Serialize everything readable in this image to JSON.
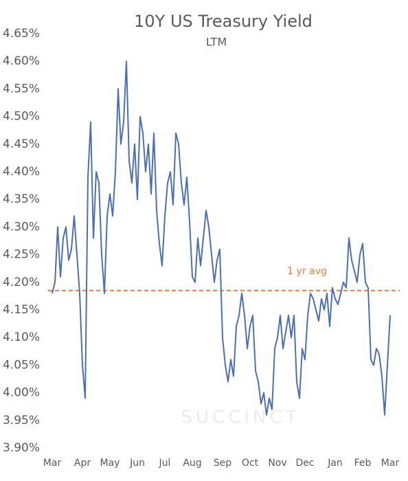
{
  "chart_data": {
    "type": "line",
    "title": "10Y US Treasury Yield",
    "subtitle": "LTM",
    "categories": [
      "Mar",
      null,
      null,
      null,
      null,
      null,
      null,
      null,
      null,
      null,
      null,
      "Apr",
      null,
      null,
      null,
      null,
      null,
      null,
      null,
      null,
      null,
      "May",
      null,
      null,
      null,
      null,
      null,
      null,
      null,
      null,
      null,
      "Jun",
      null,
      null,
      null,
      null,
      null,
      null,
      null,
      null,
      null,
      "Jul",
      null,
      null,
      null,
      null,
      null,
      null,
      null,
      null,
      null,
      "Aug",
      null,
      null,
      null,
      null,
      null,
      null,
      null,
      null,
      null,
      null,
      "Sep",
      null,
      null,
      null,
      null,
      null,
      null,
      null,
      null,
      null,
      "Oct",
      null,
      null,
      null,
      null,
      null,
      null,
      null,
      null,
      null,
      "Nov",
      null,
      null,
      null,
      null,
      null,
      null,
      null,
      null,
      null,
      "Dec",
      null,
      null,
      null,
      null,
      null,
      null,
      null,
      null,
      null,
      null,
      "Jan",
      null,
      null,
      null,
      null,
      null,
      null,
      null,
      null,
      null,
      "Feb",
      null,
      null,
      null,
      null,
      null,
      null,
      null,
      null,
      null,
      "Mar"
    ],
    "series": [
      {
        "name": "10Y US Treasury Yield",
        "color": "#4a6fb5",
        "values": [
          4.18,
          4.2,
          4.3,
          4.21,
          4.28,
          4.3,
          4.24,
          4.26,
          4.32,
          4.25,
          4.18,
          4.05,
          3.99,
          4.39,
          4.49,
          4.28,
          4.4,
          4.38,
          4.25,
          4.18,
          4.32,
          4.36,
          4.32,
          4.4,
          4.55,
          4.45,
          4.49,
          4.6,
          4.42,
          4.38,
          4.45,
          4.35,
          4.5,
          4.47,
          4.4,
          4.45,
          4.36,
          4.47,
          4.33,
          4.27,
          4.23,
          4.32,
          4.38,
          4.4,
          4.34,
          4.47,
          4.45,
          4.38,
          4.34,
          4.39,
          4.31,
          4.21,
          4.2,
          4.28,
          4.23,
          4.28,
          4.33,
          4.3,
          4.25,
          4.2,
          4.24,
          4.26,
          4.1,
          4.05,
          4.02,
          4.06,
          4.03,
          4.12,
          4.14,
          4.18,
          4.14,
          4.08,
          4.12,
          4.14,
          4.04,
          4.02,
          3.98,
          4.0,
          3.96,
          3.99,
          3.97,
          4.08,
          4.1,
          4.14,
          4.08,
          4.11,
          4.14,
          4.1,
          4.14,
          4.02,
          3.99,
          4.08,
          4.06,
          4.14,
          4.18,
          4.17,
          4.15,
          4.13,
          4.17,
          4.15,
          4.18,
          4.12,
          4.19,
          4.17,
          4.16,
          4.18,
          4.2,
          4.19,
          4.28,
          4.24,
          4.22,
          4.2,
          4.25,
          4.27,
          4.2,
          4.19,
          4.06,
          4.05,
          4.08,
          4.07,
          4.03,
          3.96,
          4.05,
          4.14
        ]
      }
    ],
    "ylim": [
      3.9,
      4.65
    ],
    "yticks": [
      {
        "value": 3.9,
        "label": "3.90%"
      },
      {
        "value": 3.95,
        "label": "3.95%"
      },
      {
        "value": 4.0,
        "label": "4.00%"
      },
      {
        "value": 4.05,
        "label": "4.05%"
      },
      {
        "value": 4.1,
        "label": "4.10%"
      },
      {
        "value": 4.15,
        "label": "4.15%"
      },
      {
        "value": 4.2,
        "label": "4.20%"
      },
      {
        "value": 4.25,
        "label": "4.25%"
      },
      {
        "value": 4.3,
        "label": "4.30%"
      },
      {
        "value": 4.35,
        "label": "4.35%"
      },
      {
        "value": 4.4,
        "label": "4.40%"
      },
      {
        "value": 4.45,
        "label": "4.45%"
      },
      {
        "value": 4.5,
        "label": "4.50%"
      },
      {
        "value": 4.55,
        "label": "4.55%"
      },
      {
        "value": 4.6,
        "label": "4.60%"
      },
      {
        "value": 4.65,
        "label": "4.65%"
      }
    ],
    "average": {
      "label": "1 yr avg",
      "value": 4.185,
      "color": "#ed7d31"
    },
    "watermark": "SUCCINCT",
    "grid": false
  }
}
